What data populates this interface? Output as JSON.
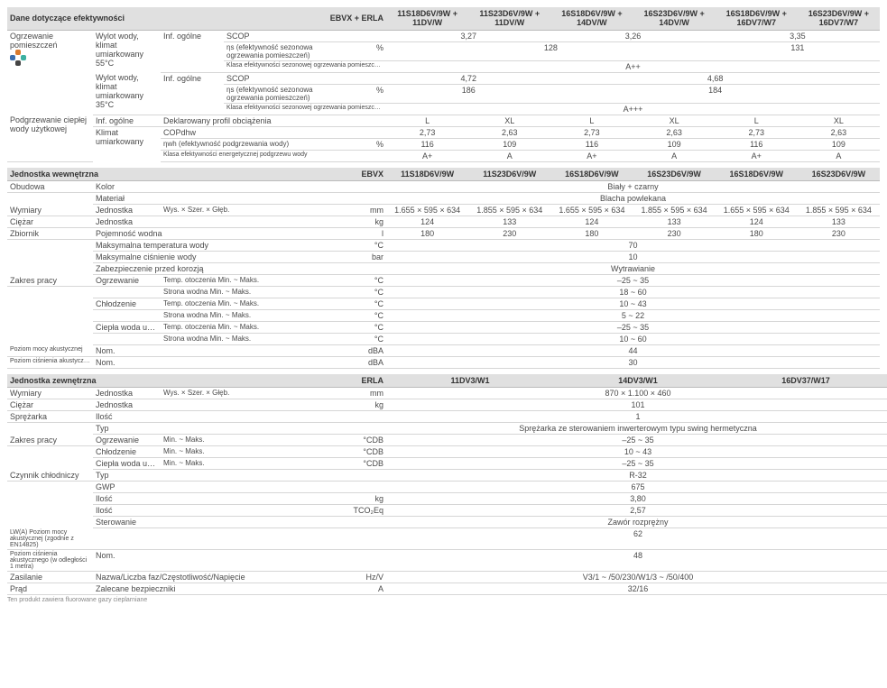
{
  "sec1": {
    "title": "Dane dotyczące efektywności",
    "tag": "EBVX + ERLA",
    "models": [
      "11S18D6V/9W + 11DV/W",
      "11S23D6V/9W + 11DV/W",
      "16S18D6V/9W + 14DV/W",
      "16S23D6V/9W + 14DV/W",
      "16S18D6V/9W + 16DV7/W7",
      "16S23D6V/9W + 16DV7/W7"
    ],
    "g1": {
      "cat": "Ogrzewanie pomieszczeń",
      "sub1": "Wylot wody, klimat umiarkowany 55°C",
      "inf": "Inf. ogólne",
      "r1": {
        "l": "SCOP",
        "u": "",
        "v": [
          "3,27",
          "3,27",
          "3,26",
          "3,26",
          "3,35",
          "3,35"
        ],
        "span": [
          2,
          2,
          2
        ]
      },
      "r2": {
        "l": "ηs (efektywność sezonowa ogrzewania pomieszczeń)",
        "u": "%",
        "v": [
          "128",
          "128",
          "128",
          "128",
          "131",
          "131"
        ],
        "span": [
          4,
          2
        ]
      },
      "r3": {
        "l": "Klasa efektywności sezonowej ogrzewania pomieszczeń",
        "u": "",
        "v": [
          "A++"
        ],
        "span": [
          6
        ]
      }
    },
    "g2": {
      "sub1": "Wylot wody, klimat umiarkowany 35°C",
      "inf": "Inf. ogólne",
      "r1": {
        "l": "SCOP",
        "u": "",
        "v": [
          "4,72",
          "4,72",
          "4,68",
          "4,68",
          "4,68",
          "4,68"
        ],
        "span": [
          2,
          4
        ]
      },
      "r2": {
        "l": "ηs (efektywność sezonowa ogrzewania pomieszczeń)",
        "u": "%",
        "v": [
          "186",
          "186",
          "184",
          "184",
          "184",
          "184"
        ],
        "span": [
          2,
          4
        ]
      },
      "r3": {
        "l": "Klasa efektywności sezonowej ogrzewania pomieszczeń",
        "u": "",
        "v": [
          "A+++"
        ],
        "span": [
          6
        ]
      }
    },
    "g3": {
      "cat": "Podgrzewanie ciepłej wody użytkowej",
      "inf": "Inf. ogólne",
      "r0": {
        "l": "Deklarowany profil obciążenia",
        "u": "",
        "v": [
          "L",
          "XL",
          "L",
          "XL",
          "L",
          "XL"
        ]
      },
      "sub": "Klimat umiarkowany",
      "r1": {
        "l": "COPdhw",
        "u": "",
        "v": [
          "2,73",
          "2,63",
          "2,73",
          "2,63",
          "2,73",
          "2,63"
        ]
      },
      "r2": {
        "l": "ηwh (efektywność podgrzewania wody)",
        "u": "%",
        "v": [
          "116",
          "109",
          "116",
          "109",
          "116",
          "109"
        ]
      },
      "r3": {
        "l": "Klasa efektywności energetycznej podgrzewu wody",
        "u": "",
        "v": [
          "A+",
          "A",
          "A+",
          "A",
          "A+",
          "A"
        ]
      }
    }
  },
  "sec2": {
    "title": "Jednostka wewnętrzna",
    "tag": "EBVX",
    "models": [
      "11S18D6V/9W",
      "11S23D6V/9W",
      "16S18D6V/9W",
      "16S23D6V/9W",
      "16S18D6V/9W",
      "16S23D6V/9W"
    ],
    "rows": [
      {
        "c": "Obudowa",
        "s": "Kolor",
        "l": "",
        "u": "",
        "v": [
          "Biały + czarny"
        ],
        "span": [
          6
        ]
      },
      {
        "c": "",
        "s": "Materiał",
        "l": "",
        "u": "",
        "v": [
          "Blacha powlekana"
        ],
        "span": [
          6
        ]
      },
      {
        "c": "Wymiary",
        "s": "Jednostka",
        "l": "Wys. × Szer. × Głęb.",
        "u": "mm",
        "v": [
          "1.655 × 595 × 634",
          "1.855 × 595 × 634",
          "1.655 × 595 × 634",
          "1.855 × 595 × 634",
          "1.655 × 595 × 634",
          "1.855 × 595 × 634"
        ]
      },
      {
        "c": "Ciężar",
        "s": "Jednostka",
        "l": "",
        "u": "kg",
        "v": [
          "124",
          "133",
          "124",
          "133",
          "124",
          "133"
        ]
      },
      {
        "c": "Zbiornik",
        "s": "Pojemność wodna",
        "l": "",
        "u": "l",
        "v": [
          "180",
          "230",
          "180",
          "230",
          "180",
          "230"
        ]
      },
      {
        "c": "",
        "s": "Maksymalna temperatura wody",
        "l": "",
        "u": "°C",
        "v": [
          "70"
        ],
        "span": [
          6
        ]
      },
      {
        "c": "",
        "s": "Maksymalne ciśnienie wody",
        "l": "",
        "u": "bar",
        "v": [
          "10"
        ],
        "span": [
          6
        ]
      },
      {
        "c": "",
        "s": "Zabezpieczenie przed korozją",
        "l": "",
        "u": "",
        "v": [
          "Wytrawianie"
        ],
        "span": [
          6
        ]
      },
      {
        "c": "Zakres pracy",
        "s": "Ogrzewanie",
        "l": "Temp. otoczenia  Min. ~ Maks.",
        "u": "°C",
        "v": [
          "–25 ~ 35"
        ],
        "span": [
          6
        ]
      },
      {
        "c": "",
        "s": "",
        "l": "Strona wodna  Min. ~ Maks.",
        "u": "°C",
        "v": [
          "18 ~ 60"
        ],
        "span": [
          6
        ]
      },
      {
        "c": "",
        "s": "Chłodzenie",
        "l": "Temp. otoczenia  Min. ~ Maks.",
        "u": "°C",
        "v": [
          "10 ~ 43"
        ],
        "span": [
          6
        ]
      },
      {
        "c": "",
        "s": "",
        "l": "Strona wodna  Min. ~ Maks.",
        "u": "°C",
        "v": [
          "5 ~ 22"
        ],
        "span": [
          6
        ]
      },
      {
        "c": "",
        "s": "Ciepła woda użytkowa",
        "l": "Temp. otoczenia  Min. ~ Maks.",
        "u": "°C",
        "v": [
          "–25 ~ 35"
        ],
        "span": [
          6
        ]
      },
      {
        "c": "",
        "s": "",
        "l": "Strona wodna  Min. ~ Maks.",
        "u": "°C",
        "v": [
          "10 ~ 60"
        ],
        "span": [
          6
        ]
      },
      {
        "c": "Poziom mocy akustycznej",
        "s": "Nom.",
        "l": "",
        "u": "dBA",
        "v": [
          "44"
        ],
        "span": [
          6
        ],
        "csmall": true
      },
      {
        "c": "Poziom ciśnienia akustycznego",
        "s": "Nom.",
        "l": "",
        "u": "dBA",
        "v": [
          "30"
        ],
        "span": [
          6
        ],
        "csmall": true
      }
    ]
  },
  "sec3": {
    "title": "Jednostka zewnętrzna",
    "tag": "ERLA",
    "models": [
      "11DV3/W1",
      "14DV3/W1",
      "16DV37/W17"
    ],
    "rows": [
      {
        "c": "Wymiary",
        "s": "Jednostka",
        "l": "Wys. × Szer. × Głęb.",
        "u": "mm",
        "v": [
          "870 × 1.100 × 460"
        ],
        "span": [
          3
        ]
      },
      {
        "c": "Ciężar",
        "s": "Jednostka",
        "l": "",
        "u": "kg",
        "v": [
          "101"
        ],
        "span": [
          3
        ]
      },
      {
        "c": "Sprężarka",
        "s": "Ilość",
        "l": "",
        "u": "",
        "v": [
          "1"
        ],
        "span": [
          3
        ]
      },
      {
        "c": "",
        "s": "Typ",
        "l": "",
        "u": "",
        "v": [
          "Sprężarka ze sterowaniem inwerterowym typu swing hermetyczna"
        ],
        "span": [
          3
        ]
      },
      {
        "c": "Zakres pracy",
        "s": "Ogrzewanie",
        "l": "Min. ~ Maks.",
        "u": "°CDB",
        "v": [
          "–25 ~ 35"
        ],
        "span": [
          3
        ]
      },
      {
        "c": "",
        "s": "Chłodzenie",
        "l": "Min. ~ Maks.",
        "u": "°CDB",
        "v": [
          "10 ~ 43"
        ],
        "span": [
          3
        ]
      },
      {
        "c": "",
        "s": "Ciepła woda użytkowa",
        "l": "Min. ~ Maks.",
        "u": "°CDB",
        "v": [
          "–25 ~ 35"
        ],
        "span": [
          3
        ]
      },
      {
        "c": "Czynnik chłodniczy",
        "s": "Typ",
        "l": "",
        "u": "",
        "v": [
          "R-32"
        ],
        "span": [
          3
        ]
      },
      {
        "c": "",
        "s": "GWP",
        "l": "",
        "u": "",
        "v": [
          "675"
        ],
        "span": [
          3
        ]
      },
      {
        "c": "",
        "s": "Ilość",
        "l": "",
        "u": "kg",
        "v": [
          "3,80"
        ],
        "span": [
          3
        ]
      },
      {
        "c": "",
        "s": "Ilość",
        "l": "",
        "u": "TCO₂Eq",
        "v": [
          "2,57"
        ],
        "span": [
          3
        ]
      },
      {
        "c": "",
        "s": "Sterowanie",
        "l": "",
        "u": "",
        "v": [
          "Zawór rozprężny"
        ],
        "span": [
          3
        ]
      },
      {
        "c": "LW(A) Poziom mocy akustycznej (zgodnie z EN14825)",
        "s": "",
        "l": "",
        "u": "",
        "v": [
          "62"
        ],
        "span": [
          3
        ],
        "csmall": true,
        "wrap": true
      },
      {
        "c": "Poziom ciśnienia akustycznego (w odległości 1 metra)",
        "s": "Nom.",
        "l": "",
        "u": "",
        "v": [
          "48"
        ],
        "span": [
          3
        ],
        "csmall": true,
        "wrap": true
      },
      {
        "c": "Zasilanie",
        "s": "Nazwa/Liczba faz/Częstotliwość/Napięcie",
        "l": "",
        "u": "Hz/V",
        "v": [
          "V3/1 ~ /50/230/W1/3 ~ /50/400"
        ],
        "span": [
          3
        ]
      },
      {
        "c": "Prąd",
        "s": "Zalecane bezpieczniki",
        "l": "",
        "u": "A",
        "v": [
          "32/16"
        ],
        "span": [
          3
        ]
      }
    ],
    "foot": "Ten produkt zawiera fluorowane gazy cieplarniane"
  }
}
